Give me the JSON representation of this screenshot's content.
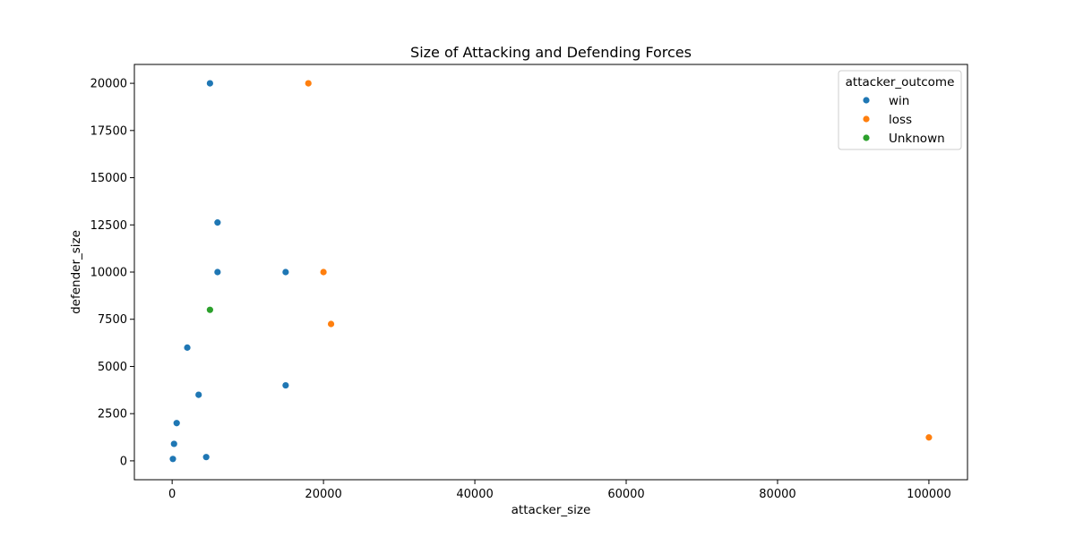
{
  "chart_data": {
    "type": "scatter",
    "title": "Size of Attacking and Defending Forces",
    "xlabel": "attacker_size",
    "ylabel": "defender_size",
    "xlim": [
      -4990,
      105100
    ],
    "ylim": [
      -1000,
      21000
    ],
    "xticks": [
      0,
      20000,
      40000,
      60000,
      80000,
      100000
    ],
    "xtick_labels": [
      "0",
      "20000",
      "40000",
      "60000",
      "80000",
      "100000"
    ],
    "yticks": [
      0,
      2500,
      5000,
      7500,
      10000,
      12500,
      15000,
      17500,
      20000
    ],
    "ytick_labels": [
      "0",
      "2500",
      "5000",
      "7500",
      "10000",
      "12500",
      "15000",
      "17500",
      "20000"
    ],
    "grid": false,
    "legend": {
      "title": "attacker_outcome",
      "placement": "top-right"
    },
    "series": [
      {
        "name": "win",
        "color": "#1f77b4",
        "points": [
          {
            "x": 5000,
            "y": 20000
          },
          {
            "x": 6000,
            "y": 12625
          },
          {
            "x": 6000,
            "y": 10000
          },
          {
            "x": 15000,
            "y": 10000
          },
          {
            "x": 2000,
            "y": 6000
          },
          {
            "x": 3500,
            "y": 3500
          },
          {
            "x": 15000,
            "y": 4000
          },
          {
            "x": 600,
            "y": 2000
          },
          {
            "x": 250,
            "y": 900
          },
          {
            "x": 100,
            "y": 100
          },
          {
            "x": 4500,
            "y": 200
          }
        ]
      },
      {
        "name": "loss",
        "color": "#ff7f0e",
        "points": [
          {
            "x": 18000,
            "y": 20000
          },
          {
            "x": 20000,
            "y": 10000
          },
          {
            "x": 21000,
            "y": 7250
          },
          {
            "x": 100000,
            "y": 1240
          }
        ]
      },
      {
        "name": "Unknown",
        "color": "#2ca02c",
        "points": [
          {
            "x": 5000,
            "y": 8000
          }
        ]
      }
    ]
  }
}
